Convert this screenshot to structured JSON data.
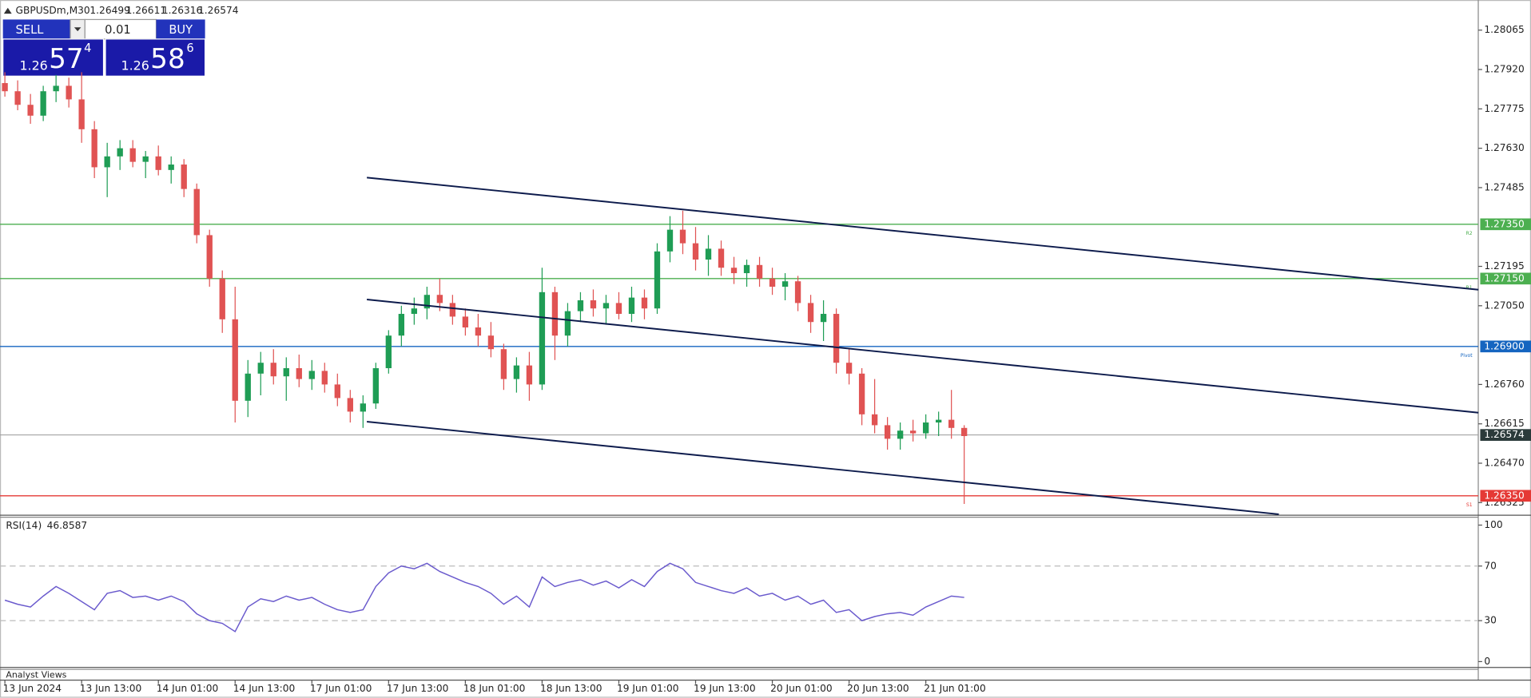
{
  "chart_data": {
    "type": "candlestick",
    "symbol": "GBPUSDm,M30",
    "ohlc": [
      1.26499,
      1.26611,
      1.26316,
      1.26574
    ],
    "trade_panel": {
      "sell": "SELL",
      "buy": "BUY",
      "volume": "0.01",
      "bid": {
        "big": "1.26",
        "main": "57",
        "pip": "4"
      },
      "ask": {
        "big": "1.26",
        "main": "58",
        "pip": "6"
      }
    },
    "bull_color": "#1f9d55",
    "bear_color": "#e05353",
    "candles": [
      [
        1.2787,
        1.2791,
        1.2782,
        1.2784
      ],
      [
        1.2784,
        1.2788,
        1.2777,
        1.2779
      ],
      [
        1.2779,
        1.2783,
        1.2772,
        1.2775
      ],
      [
        1.2775,
        1.2786,
        1.2773,
        1.2784
      ],
      [
        1.2784,
        1.279,
        1.278,
        1.2786
      ],
      [
        1.2786,
        1.2789,
        1.2778,
        1.2781
      ],
      [
        1.2781,
        1.2791,
        1.2765,
        1.277
      ],
      [
        1.277,
        1.2773,
        1.2752,
        1.2756
      ],
      [
        1.2756,
        1.2765,
        1.2745,
        1.276
      ],
      [
        1.276,
        1.2766,
        1.2755,
        1.2763
      ],
      [
        1.2763,
        1.2766,
        1.2756,
        1.2758
      ],
      [
        1.2758,
        1.2762,
        1.2752,
        1.276
      ],
      [
        1.276,
        1.2764,
        1.2753,
        1.2755
      ],
      [
        1.2755,
        1.276,
        1.275,
        1.2757
      ],
      [
        1.2757,
        1.2759,
        1.2745,
        1.2748
      ],
      [
        1.2748,
        1.275,
        1.2728,
        1.2731
      ],
      [
        1.2731,
        1.2733,
        1.2712,
        1.2715
      ],
      [
        1.2715,
        1.2718,
        1.2695,
        1.27
      ],
      [
        1.27,
        1.2712,
        1.2662,
        1.267
      ],
      [
        1.267,
        1.2685,
        1.2664,
        1.268
      ],
      [
        1.268,
        1.2688,
        1.2672,
        1.2684
      ],
      [
        1.2684,
        1.2689,
        1.2676,
        1.2679
      ],
      [
        1.2679,
        1.2686,
        1.267,
        1.2682
      ],
      [
        1.2682,
        1.2687,
        1.2675,
        1.2678
      ],
      [
        1.2678,
        1.2685,
        1.2674,
        1.2681
      ],
      [
        1.2681,
        1.2684,
        1.2673,
        1.2676
      ],
      [
        1.2676,
        1.268,
        1.2668,
        1.2671
      ],
      [
        1.2671,
        1.2674,
        1.2662,
        1.2666
      ],
      [
        1.2666,
        1.2672,
        1.266,
        1.2669
      ],
      [
        1.2669,
        1.2684,
        1.2667,
        1.2682
      ],
      [
        1.2682,
        1.2696,
        1.268,
        1.2694
      ],
      [
        1.2694,
        1.2705,
        1.269,
        1.2702
      ],
      [
        1.2702,
        1.2708,
        1.2698,
        1.2704
      ],
      [
        1.2704,
        1.2712,
        1.27,
        1.2709
      ],
      [
        1.2709,
        1.2715,
        1.2703,
        1.2706
      ],
      [
        1.2706,
        1.2709,
        1.2698,
        1.2701
      ],
      [
        1.2701,
        1.2704,
        1.2694,
        1.2697
      ],
      [
        1.2697,
        1.2702,
        1.269,
        1.2694
      ],
      [
        1.2694,
        1.2699,
        1.2686,
        1.2689
      ],
      [
        1.2689,
        1.2691,
        1.2674,
        1.2678
      ],
      [
        1.2678,
        1.2686,
        1.2673,
        1.2683
      ],
      [
        1.2683,
        1.2688,
        1.267,
        1.2676
      ],
      [
        1.2676,
        1.2719,
        1.2674,
        1.271
      ],
      [
        1.271,
        1.2712,
        1.2685,
        1.2694
      ],
      [
        1.2694,
        1.2706,
        1.269,
        1.2703
      ],
      [
        1.2703,
        1.271,
        1.2699,
        1.2707
      ],
      [
        1.2707,
        1.2711,
        1.2701,
        1.2704
      ],
      [
        1.2704,
        1.2709,
        1.2698,
        1.2706
      ],
      [
        1.2706,
        1.271,
        1.27,
        1.2702
      ],
      [
        1.2702,
        1.2712,
        1.2699,
        1.2708
      ],
      [
        1.2708,
        1.2711,
        1.27,
        1.2704
      ],
      [
        1.2704,
        1.2728,
        1.2702,
        1.2725
      ],
      [
        1.2725,
        1.2738,
        1.2721,
        1.2733
      ],
      [
        1.2733,
        1.274,
        1.2724,
        1.2728
      ],
      [
        1.2728,
        1.2734,
        1.2718,
        1.2722
      ],
      [
        1.2722,
        1.2731,
        1.2716,
        1.2726
      ],
      [
        1.2726,
        1.2729,
        1.2716,
        1.2719
      ],
      [
        1.2719,
        1.2723,
        1.2713,
        1.2717
      ],
      [
        1.2717,
        1.2722,
        1.2712,
        1.272
      ],
      [
        1.272,
        1.2723,
        1.2712,
        1.2715
      ],
      [
        1.2715,
        1.2719,
        1.2709,
        1.2712
      ],
      [
        1.2712,
        1.2717,
        1.2707,
        1.2714
      ],
      [
        1.2714,
        1.2716,
        1.2703,
        1.2706
      ],
      [
        1.2706,
        1.2709,
        1.2695,
        1.2699
      ],
      [
        1.2699,
        1.2707,
        1.2692,
        1.2702
      ],
      [
        1.2702,
        1.2704,
        1.268,
        1.2684
      ],
      [
        1.2684,
        1.2689,
        1.2676,
        1.268
      ],
      [
        1.268,
        1.2682,
        1.2661,
        1.2665
      ],
      [
        1.2665,
        1.2678,
        1.2658,
        1.2661
      ],
      [
        1.2661,
        1.2664,
        1.2652,
        1.2656
      ],
      [
        1.2656,
        1.2662,
        1.2652,
        1.2659
      ],
      [
        1.2659,
        1.2663,
        1.2655,
        1.2658
      ],
      [
        1.2658,
        1.2665,
        1.2656,
        1.2662
      ],
      [
        1.2662,
        1.2666,
        1.2657,
        1.2663
      ],
      [
        1.2663,
        1.2674,
        1.2656,
        1.266
      ],
      [
        1.266,
        1.2661,
        1.2632,
        1.2657
      ]
    ],
    "ylim": [
      1.26282,
      1.28176
    ],
    "yticks": [
      1.28065,
      {
        "value": 1.2792,
        "label": "1.27920"
      },
      1.27775,
      {
        "value": 1.2763,
        "label": "1.27630"
      },
      1.27485,
      1.27195,
      {
        "value": 1.2705,
        "label": "1.27050"
      },
      {
        "value": 1.2676,
        "label": "1.26760"
      },
      1.26615,
      {
        "value": 1.2647,
        "label": "1.26470"
      },
      1.26325
    ],
    "x_labels": [
      "13 Jun 2024",
      "13 Jun 13:00",
      "14 Jun 01:00",
      "14 Jun 13:00",
      "17 Jun 01:00",
      "17 Jun 13:00",
      "18 Jun 01:00",
      "18 Jun 13:00",
      "19 Jun 01:00",
      "19 Jun 13:00",
      "20 Jun 01:00",
      "20 Jun 13:00",
      "21 Jun 01:00"
    ],
    "levels": [
      {
        "name": "R2",
        "price": {
          "value": 1.2735,
          "label": "1.27350"
        },
        "color": "#4caf50"
      },
      {
        "name": "R1",
        "price": {
          "value": 1.2715,
          "label": "1.27150"
        },
        "color": "#4caf50"
      },
      {
        "name": "Pivot",
        "price": {
          "value": 1.269,
          "label": "1.26900"
        },
        "color": "#1565c0"
      },
      {
        "name": "S1",
        "price": {
          "value": 1.2635,
          "label": "1.26350"
        },
        "color": "#e53935"
      }
    ],
    "current_price": 1.26574,
    "current_color": "#2b3a3a",
    "trendline_color": "#0d1b4c",
    "trendlines": [
      {
        "points": [
          [
            28.3,
            1.27522
          ],
          [
            115.2,
            1.27109
          ]
        ]
      },
      {
        "points": [
          [
            28.3,
            1.27073
          ],
          [
            115.2,
            1.26656
          ]
        ]
      },
      {
        "points": [
          [
            28.3,
            1.26623
          ],
          [
            99.6,
            1.26282
          ]
        ]
      }
    ],
    "rsi": {
      "name": "RSI(14)",
      "last": 46.8587,
      "color": "#6a5acd",
      "ylim": [
        -4.3,
        105.8
      ],
      "yticks": [
        0,
        30,
        70,
        100
      ],
      "levels": [
        30,
        70
      ],
      "values": [
        45,
        42,
        40,
        48,
        55,
        50,
        44,
        38,
        50,
        52,
        47,
        48,
        45,
        48,
        44,
        35,
        30,
        28,
        22,
        40,
        46,
        44,
        48,
        45,
        47,
        42,
        38,
        36,
        38,
        55,
        65,
        70,
        68,
        72,
        66,
        62,
        58,
        55,
        50,
        42,
        48,
        40,
        62,
        55,
        58,
        60,
        56,
        59,
        54,
        60,
        55,
        66,
        72,
        68,
        58,
        55,
        52,
        50,
        54,
        48,
        50,
        45,
        48,
        42,
        45,
        36,
        38,
        30,
        33,
        35,
        36,
        34,
        40,
        44,
        48,
        47
      ]
    },
    "footer": "Analyst Views"
  }
}
